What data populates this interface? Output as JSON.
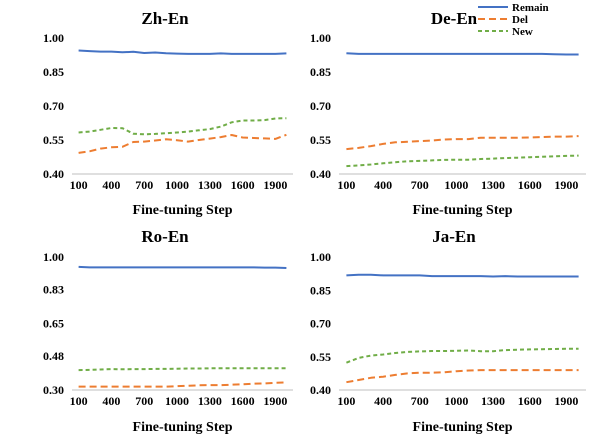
{
  "colors": {
    "Remain": "#4472c4",
    "Del": "#ed7d31",
    "New": "#70ad47"
  },
  "legend": {
    "placement": "top-right",
    "entries": [
      "Remain",
      "Del",
      "New"
    ]
  },
  "chart_data": [
    {
      "type": "line",
      "title": "Zh-En",
      "xlabel": "Fine-tuning Step",
      "ylabel": "",
      "xlim": [
        100,
        2000
      ],
      "ylim": [
        0.4,
        1.0
      ],
      "x_ticks": [
        "100",
        "400",
        "700",
        "1000",
        "1300",
        "1600",
        "1900"
      ],
      "y_ticks": [
        "1.00",
        "0.85",
        "0.70",
        "0.55",
        "0.40"
      ],
      "grid": false,
      "x": [
        100,
        200,
        300,
        400,
        500,
        600,
        700,
        800,
        900,
        1000,
        1100,
        1200,
        1300,
        1400,
        1500,
        1600,
        1700,
        1800,
        1900,
        2000
      ],
      "series": [
        {
          "name": "Remain",
          "values": [
            0.945,
            0.942,
            0.94,
            0.94,
            0.937,
            0.939,
            0.934,
            0.936,
            0.933,
            0.931,
            0.93,
            0.93,
            0.93,
            0.932,
            0.93,
            0.93,
            0.93,
            0.93,
            0.93,
            0.932
          ]
        },
        {
          "name": "Del",
          "values": [
            0.493,
            0.5,
            0.512,
            0.518,
            0.52,
            0.541,
            0.543,
            0.548,
            0.553,
            0.549,
            0.543,
            0.55,
            0.556,
            0.563,
            0.572,
            0.561,
            0.559,
            0.557,
            0.555,
            0.573
          ]
        },
        {
          "name": "New",
          "values": [
            0.583,
            0.587,
            0.595,
            0.603,
            0.602,
            0.578,
            0.575,
            0.577,
            0.58,
            0.583,
            0.587,
            0.593,
            0.598,
            0.609,
            0.628,
            0.636,
            0.636,
            0.638,
            0.645,
            0.646
          ]
        }
      ]
    },
    {
      "type": "line",
      "title": "De-En",
      "xlabel": "Fine-tuning Step",
      "ylabel": "",
      "xlim": [
        100,
        2000
      ],
      "ylim": [
        0.4,
        1.0
      ],
      "x_ticks": [
        "100",
        "400",
        "700",
        "1000",
        "1300",
        "1600",
        "1900"
      ],
      "y_ticks": [
        "1.00",
        "0.85",
        "0.70",
        "0.55",
        "0.40"
      ],
      "grid": false,
      "x": [
        100,
        200,
        300,
        400,
        500,
        600,
        700,
        800,
        900,
        1000,
        1100,
        1200,
        1300,
        1400,
        1500,
        1600,
        1700,
        1800,
        1900,
        2000
      ],
      "series": [
        {
          "name": "Remain",
          "values": [
            0.933,
            0.93,
            0.93,
            0.93,
            0.93,
            0.93,
            0.93,
            0.93,
            0.93,
            0.93,
            0.93,
            0.93,
            0.93,
            0.93,
            0.93,
            0.93,
            0.93,
            0.928,
            0.927,
            0.927
          ]
        },
        {
          "name": "Del",
          "values": [
            0.51,
            0.515,
            0.523,
            0.533,
            0.54,
            0.542,
            0.545,
            0.548,
            0.552,
            0.554,
            0.554,
            0.56,
            0.56,
            0.56,
            0.56,
            0.561,
            0.563,
            0.565,
            0.565,
            0.567
          ]
        },
        {
          "name": "New",
          "values": [
            0.435,
            0.438,
            0.442,
            0.447,
            0.452,
            0.456,
            0.458,
            0.46,
            0.462,
            0.463,
            0.463,
            0.466,
            0.468,
            0.47,
            0.472,
            0.474,
            0.476,
            0.478,
            0.48,
            0.481
          ]
        }
      ]
    },
    {
      "type": "line",
      "title": "Ro-En",
      "xlabel": "Fine-tuning Step",
      "ylabel": "",
      "xlim": [
        100,
        2000
      ],
      "ylim": [
        0.3,
        1.0
      ],
      "x_ticks": [
        "100",
        "400",
        "700",
        "1000",
        "1300",
        "1600",
        "1900"
      ],
      "y_ticks": [
        "1.00",
        "0.83",
        "0.65",
        "0.48",
        "0.30"
      ],
      "grid": false,
      "x": [
        100,
        200,
        300,
        400,
        500,
        600,
        700,
        800,
        900,
        1000,
        1100,
        1200,
        1300,
        1400,
        1500,
        1600,
        1700,
        1800,
        1900,
        2000
      ],
      "series": [
        {
          "name": "Remain",
          "values": [
            0.948,
            0.945,
            0.945,
            0.945,
            0.945,
            0.945,
            0.945,
            0.945,
            0.945,
            0.945,
            0.945,
            0.945,
            0.945,
            0.945,
            0.945,
            0.945,
            0.945,
            0.944,
            0.944,
            0.942
          ]
        },
        {
          "name": "Del",
          "values": [
            0.318,
            0.318,
            0.318,
            0.318,
            0.318,
            0.318,
            0.318,
            0.318,
            0.318,
            0.32,
            0.322,
            0.325,
            0.326,
            0.326,
            0.328,
            0.33,
            0.333,
            0.335,
            0.338,
            0.34
          ]
        },
        {
          "name": "New",
          "values": [
            0.405,
            0.406,
            0.408,
            0.41,
            0.409,
            0.41,
            0.41,
            0.411,
            0.411,
            0.412,
            0.413,
            0.413,
            0.414,
            0.414,
            0.414,
            0.414,
            0.414,
            0.414,
            0.414,
            0.414
          ]
        }
      ]
    },
    {
      "type": "line",
      "title": "Ja-En",
      "xlabel": "Fine-tuning Step",
      "ylabel": "",
      "xlim": [
        100,
        2000
      ],
      "ylim": [
        0.4,
        1.0
      ],
      "x_ticks": [
        "100",
        "400",
        "700",
        "1000",
        "1300",
        "1600",
        "1900"
      ],
      "y_ticks": [
        "1.00",
        "0.85",
        "0.70",
        "0.55",
        "0.40"
      ],
      "grid": false,
      "x": [
        100,
        200,
        300,
        400,
        500,
        600,
        700,
        800,
        900,
        1000,
        1100,
        1200,
        1300,
        1400,
        1500,
        1600,
        1700,
        1800,
        1900,
        2000
      ],
      "series": [
        {
          "name": "Remain",
          "values": [
            0.917,
            0.92,
            0.92,
            0.917,
            0.917,
            0.917,
            0.917,
            0.914,
            0.914,
            0.914,
            0.914,
            0.914,
            0.912,
            0.914,
            0.912,
            0.912,
            0.912,
            0.912,
            0.912,
            0.912
          ]
        },
        {
          "name": "Del",
          "values": [
            0.435,
            0.445,
            0.455,
            0.46,
            0.468,
            0.475,
            0.478,
            0.478,
            0.48,
            0.485,
            0.488,
            0.49,
            0.49,
            0.49,
            0.49,
            0.49,
            0.49,
            0.49,
            0.49,
            0.49
          ]
        },
        {
          "name": "New",
          "values": [
            0.523,
            0.545,
            0.555,
            0.56,
            0.567,
            0.572,
            0.574,
            0.576,
            0.576,
            0.577,
            0.578,
            0.575,
            0.575,
            0.58,
            0.582,
            0.583,
            0.584,
            0.585,
            0.586,
            0.586
          ]
        }
      ]
    }
  ]
}
